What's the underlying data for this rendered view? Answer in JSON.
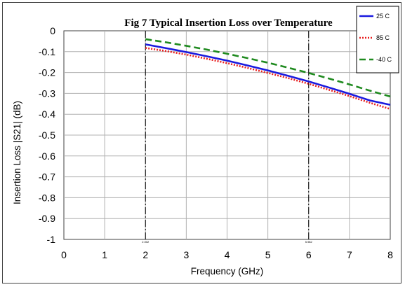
{
  "chart_data": {
    "type": "line",
    "title": "Fig 7 Typical Insertion Loss over Temperature",
    "xlabel": "Frequency (GHz)",
    "ylabel": "Insertion Loss |S21| (dB)",
    "xlim": [
      0,
      8
    ],
    "ylim": [
      -1,
      0
    ],
    "xticks": [
      0,
      1,
      2,
      3,
      4,
      5,
      6,
      7,
      8
    ],
    "xtick_labels": [
      "0",
      "1",
      "2",
      "3",
      "4",
      "5",
      "6",
      "7",
      "8"
    ],
    "yticks": [
      0,
      -0.1,
      -0.2,
      -0.3,
      -0.4,
      -0.5,
      -0.6,
      -0.7,
      -0.8,
      -0.9,
      -1
    ],
    "ytick_labels": [
      "0",
      "-0.1",
      "-0.2",
      "-0.3",
      "-0.4",
      "-0.5",
      "-0.6",
      "-0.7",
      "-0.8",
      "-0.9",
      "-1"
    ],
    "grid": true,
    "legend_position": "top-right",
    "x": [
      2,
      2.5,
      3,
      3.5,
      4,
      4.5,
      5,
      5.5,
      6,
      6.5,
      7,
      7.5,
      8
    ],
    "series": [
      {
        "name": "25 C",
        "color": "#1a1adf",
        "style": "solid",
        "values": [
          -0.065,
          -0.083,
          -0.102,
          -0.122,
          -0.143,
          -0.166,
          -0.19,
          -0.216,
          -0.243,
          -0.272,
          -0.302,
          -0.334,
          -0.355
        ]
      },
      {
        "name": "85 C",
        "color": "#e81f1f",
        "style": "dotted",
        "values": [
          -0.082,
          -0.097,
          -0.114,
          -0.134,
          -0.155,
          -0.178,
          -0.202,
          -0.227,
          -0.254,
          -0.283,
          -0.313,
          -0.345,
          -0.375
        ]
      },
      {
        "name": "-40 C",
        "color": "#1f8a1f",
        "style": "dashed",
        "values": [
          -0.04,
          -0.055,
          -0.072,
          -0.09,
          -0.11,
          -0.131,
          -0.153,
          -0.177,
          -0.202,
          -0.229,
          -0.257,
          -0.287,
          -0.315
        ]
      }
    ],
    "markers": [
      {
        "x": 2,
        "label": "2.002"
      },
      {
        "x": 6,
        "label": "5.982"
      }
    ]
  }
}
